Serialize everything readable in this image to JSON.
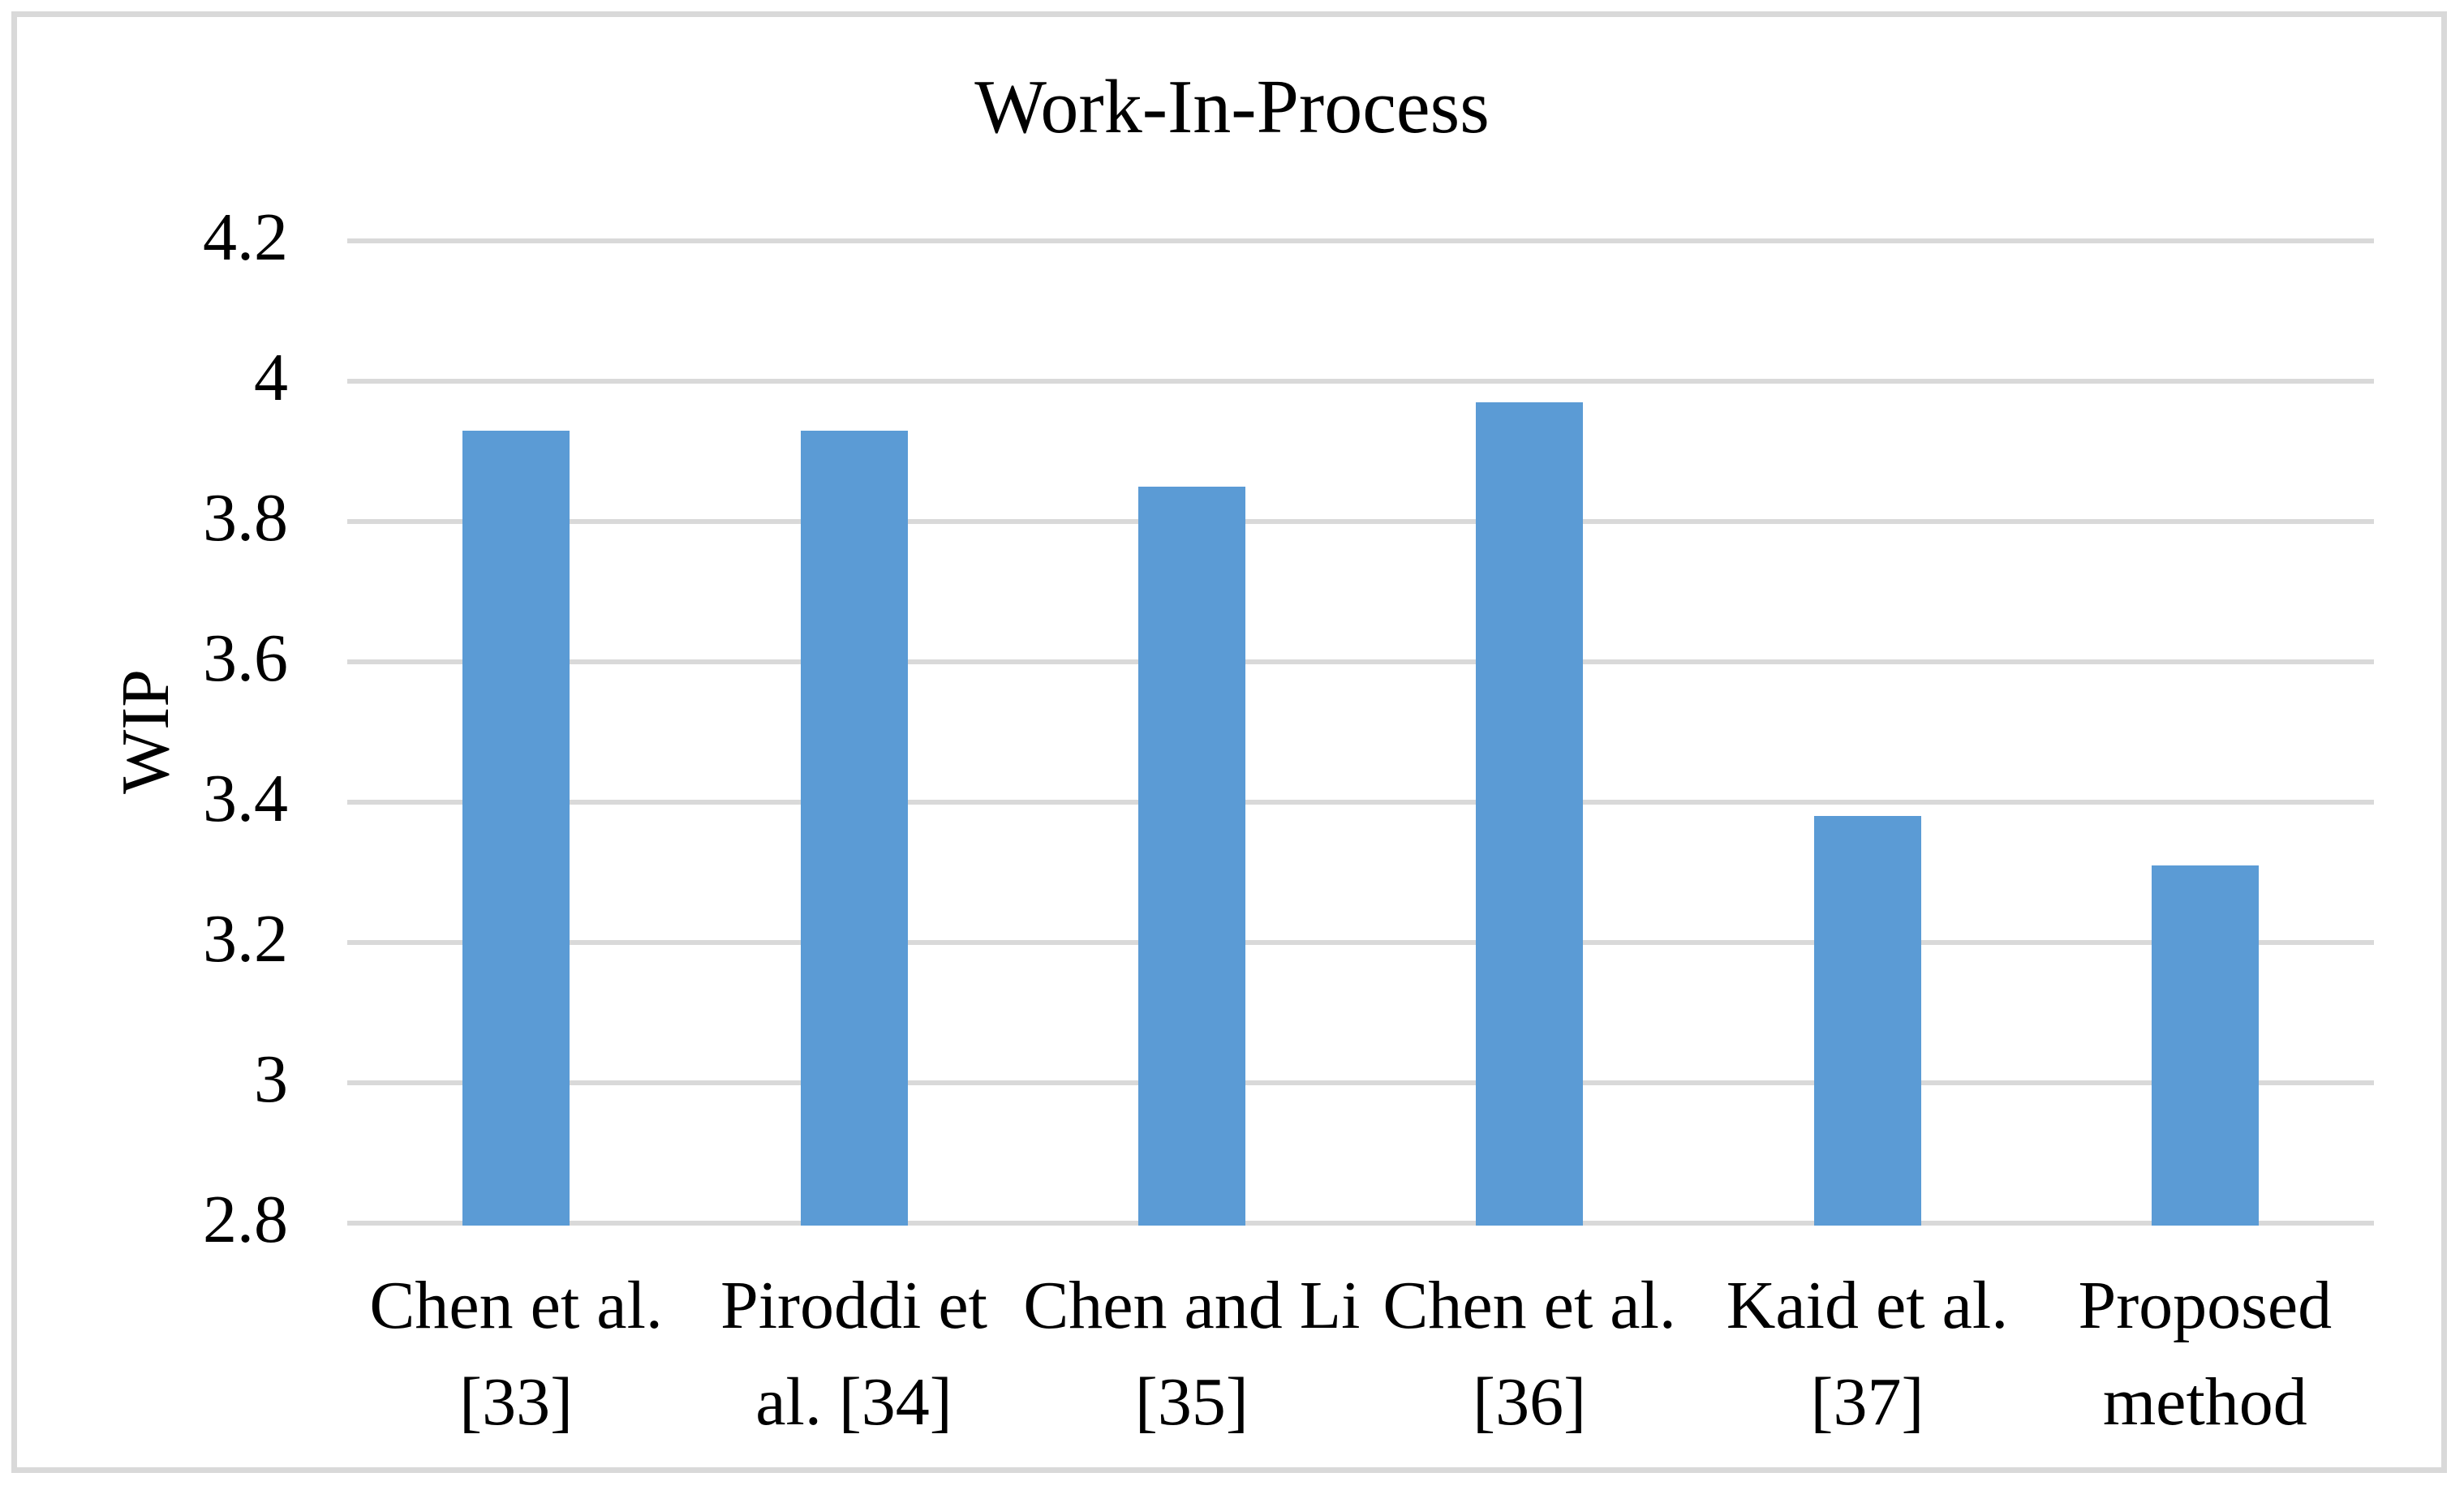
{
  "chart_data": {
    "type": "bar",
    "title": "Work-In-Process",
    "ylabel": "WIP",
    "xlabel": "",
    "categories": [
      "Chen et al.\n[33]",
      "Piroddi et\nal. [34]",
      "Chen and Li\n[35]",
      "Chen et al.\n[36]",
      "Kaid et al.\n[37]",
      "Proposed\nmethod"
    ],
    "values": [
      3.93,
      3.93,
      3.85,
      3.97,
      3.38,
      3.31
    ],
    "ylim": [
      2.8,
      4.2
    ],
    "ytick_step": 0.2,
    "ytick_labels": [
      "2.8",
      "3",
      "3.2",
      "3.4",
      "3.6",
      "3.8",
      "4",
      "4.2"
    ],
    "grid": "horizontal",
    "legend": "none",
    "colors": {
      "bar": "#5B9BD5",
      "gridline": "#D9D9D9",
      "axis_line": "#D9D9D9",
      "text": "#000000",
      "frame_border": "#D9D9D9"
    }
  }
}
